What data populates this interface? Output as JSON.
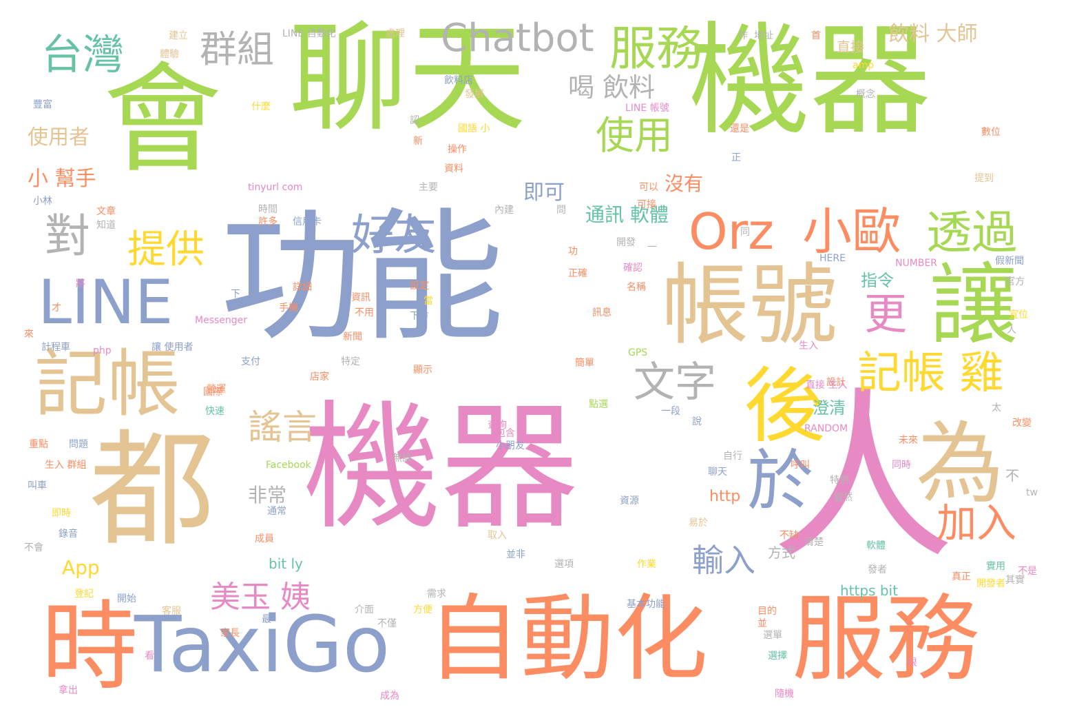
{
  "colors": {
    "green": "#a6d854",
    "blue": "#8da0cb",
    "orange": "#fc8d62",
    "pink": "#e78ac3",
    "tan": "#e5c494",
    "yellow": "#ffd92f",
    "teal": "#66c2a5",
    "gray": "#b3b3b3",
    "background": "#ffffff"
  },
  "words": {
    "w01": "會",
    "w02": "聊天",
    "w03": "機器",
    "w04": "功能",
    "w05": "機器",
    "w06": "人",
    "w07": "都",
    "w08": "時",
    "w09": "TaxiGo",
    "w10": "自動化",
    "w11": "服務",
    "w12": "帳號",
    "w13": "讓",
    "w14": "為",
    "w15": "後",
    "w16": "於",
    "w17": "記帳",
    "w18": "LINE",
    "w19": "台灣",
    "w20": "群組",
    "w21": "Chatbot",
    "w22": "服務",
    "w23": "使用",
    "w24": "Orz",
    "w25": "小歐",
    "w26": "透過",
    "w27": "好友",
    "w28": "對",
    "w29": "提供",
    "w30": "文字",
    "w31": "記帳 雞",
    "w32": "更",
    "w33": "加入",
    "w34": "輸入",
    "w35": "美玉 姨",
    "w36": "謠言",
    "w37": "喝 飲料",
    "w38": "飲料 大師",
    "w39": "使用者",
    "w40": "小 幫手",
    "w41": "即可",
    "w42": "沒有",
    "w43": "通訊 軟體",
    "w44": "指令",
    "w45": "澄清",
    "w46": "非常",
    "w47": "App",
    "w48": "http",
    "w49": "bit ly",
    "w50": "方式",
    "w51": "https bit",
    "w52": "LINE 自動化",
    "w53": "地址",
    "w54": "直接",
    "w55": "飲料店",
    "w56": "發展",
    "w57": "國語 小",
    "w58": "操作",
    "w59": "資料",
    "w60": "tinyurl com",
    "w61": "LINE 帳號",
    "w62": "叫車",
    "w63": "即時",
    "w64": "不會",
    "w65": "計程車",
    "w66": "讓 使用者",
    "w67": "問題",
    "w68": "開始",
    "w69": "方便",
    "w70": "最",
    "w71": "家長",
    "w72": "成為",
    "w73": "選擇",
    "w74": "選單",
    "w75": "發者",
    "w76": "軟體",
    "w77": "實用",
    "w78": "開發者",
    "w79": "官方",
    "w80": "假新聞",
    "w81": "GPS",
    "w82": "Messenger",
    "w83": "Facebook",
    "w84": "RANDOM",
    "w85": "NUMBER",
    "w86": "HERE",
    "w87": "設定",
    "w88": "手機",
    "w89": "資訊",
    "w90": "下方",
    "w91": "不用",
    "w92": "支付",
    "w93": "特定",
    "w94": "新聞",
    "w95": "點選",
    "w96": "說",
    "w97": "一段",
    "w98": "聊天",
    "w99": "通常",
    "w100": "需求",
    "w101": "介面",
    "w102": "基本功能",
    "w103": "作業",
    "w104": "選項",
    "w105": "並非",
    "w106": "不僅",
    "w107": "未來",
    "w108": "改變",
    "w109": "同時",
    "w110": "不",
    "w111": "tw",
    "w112": "php",
    "w113": "amp",
    "w114": "建立",
    "w115": "體驗",
    "w116": "處理",
    "w117": "什麼",
    "w118": "豐富",
    "w119": "內建",
    "w120": "開發",
    "w121": "時間",
    "w122": "許多",
    "w123": "信用卡",
    "w124": "文章",
    "w125": "知道",
    "w126": "可以",
    "w127": "詳細",
    "w128": "當",
    "w129": "顯示",
    "w130": "店家",
    "w131": "快速",
    "w132": "國際",
    "w133": "查詢",
    "w134": "包含",
    "w135": "小朋友",
    "w136": "簡單",
    "w137": "訊息",
    "w138": "名稱",
    "w139": "生入",
    "w140": "設計",
    "w141": "宣位",
    "w142": "作",
    "w143": "概念",
    "w144": "主要",
    "w145": "問",
    "w146": "可接",
    "w147": "還是",
    "w148": "正確",
    "w149": "確認",
    "w150": "自行",
    "w151": "特別",
    "w152": "當然",
    "w153": "不缺",
    "w154": "清楚",
    "w155": "真正",
    "w156": "錄音",
    "w157": "生入 群組",
    "w158": "重點",
    "w159": "登記",
    "w160": "客服",
    "w161": "營運",
    "w162": "成員",
    "w163": "看",
    "w164": "很",
    "w165": "隨機",
    "w166": "呼叫",
    "w167": "資源",
    "w168": "拿出",
    "w169": "其實",
    "w170": "才",
    "w171": "來",
    "w172": "將",
    "w173": "下",
    "w174": "正",
    "w175": "一",
    "w176": "首",
    "w177": "小林",
    "w178": "無論",
    "w179": "目的",
    "w180": "並",
    "w181": "取入",
    "w182": "易於",
    "w183": "不是",
    "w184": "直接 生入",
    "w185": "太",
    "w186": "新",
    "w187": "認",
    "w188": "同",
    "w189": "提到",
    "w190": "功",
    "w191": "人",
    "w192": "數位"
  }
}
